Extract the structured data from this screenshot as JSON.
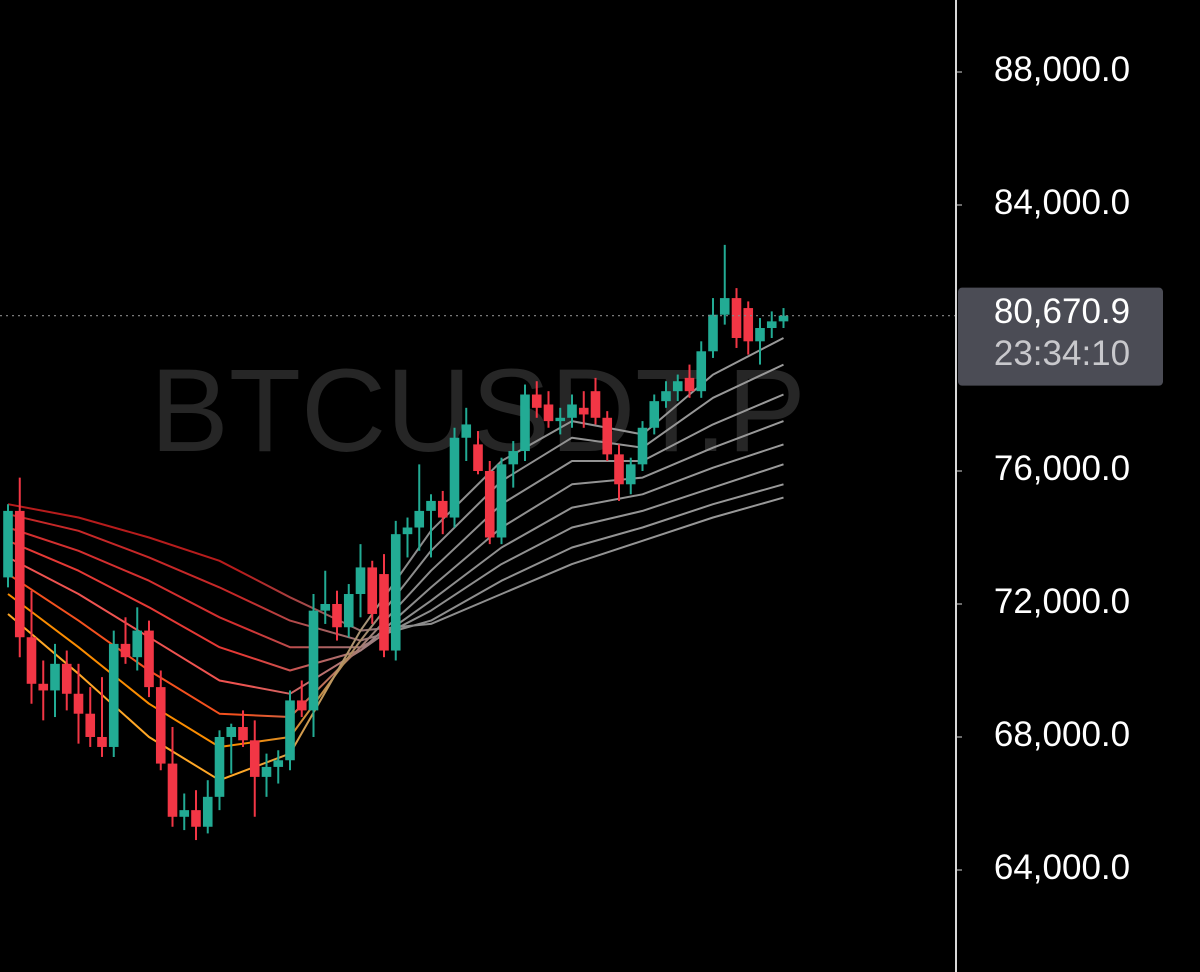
{
  "chart_data": {
    "type": "candlestick",
    "watermark": "BTCUSDT.P",
    "categories": [
      null,
      null,
      null,
      null,
      null,
      null,
      null,
      null,
      null,
      null,
      null,
      null,
      null,
      null,
      null,
      null,
      null,
      null,
      null,
      null,
      null,
      null,
      null,
      null,
      null,
      null,
      null,
      null,
      null,
      null,
      null,
      null,
      null,
      null,
      null,
      null,
      null,
      null,
      null,
      null,
      null,
      null,
      null,
      null,
      null,
      null,
      null,
      null,
      null,
      null,
      null,
      null,
      null,
      null,
      null,
      null,
      null,
      null,
      null,
      null,
      null,
      null,
      null,
      null,
      null,
      null,
      null
    ],
    "open": [
      72800,
      74800,
      71000,
      69600,
      69400,
      70200,
      69300,
      68700,
      68000,
      67700,
      70800,
      70400,
      71200,
      69500,
      67200,
      65600,
      65800,
      65300,
      66200,
      68000,
      68300,
      67900,
      66800,
      67100,
      67300,
      69100,
      68800,
      71800,
      72000,
      71300,
      72300,
      73100,
      72900,
      70600,
      74100,
      74300,
      74800,
      75100,
      74600,
      77000,
      76800,
      76000,
      74000,
      76200,
      76600,
      78300,
      78000,
      77500,
      77600,
      77900,
      78400,
      77600,
      76500,
      75600,
      76200,
      77300,
      78100,
      78400,
      78800,
      78400,
      79600,
      80700,
      81200,
      80900,
      79900,
      80300,
      80500
    ],
    "high": [
      75000,
      75800,
      72400,
      70300,
      70800,
      70600,
      70200,
      69500,
      69800,
      71200,
      71600,
      71900,
      71500,
      70000,
      68300,
      66300,
      66400,
      66700,
      68200,
      68400,
      68800,
      68500,
      67500,
      67600,
      69400,
      69700,
      72300,
      73000,
      72400,
      72600,
      73800,
      73300,
      73500,
      74500,
      74600,
      76200,
      75300,
      75400,
      77300,
      77900,
      77200,
      76300,
      76400,
      76900,
      78600,
      78700,
      78400,
      77900,
      78300,
      78400,
      78800,
      77800,
      76800,
      76400,
      77500,
      78300,
      78700,
      78900,
      79200,
      79900,
      81200,
      82800,
      81500,
      81100,
      80600,
      80800,
      80900
    ],
    "low": [
      72500,
      70400,
      69000,
      68500,
      68600,
      68800,
      67800,
      67700,
      67400,
      67400,
      70200,
      70000,
      69200,
      67000,
      65300,
      65200,
      64900,
      65100,
      65800,
      66900,
      67700,
      65600,
      66200,
      66600,
      67000,
      68600,
      68000,
      71400,
      70900,
      71000,
      71600,
      71400,
      70400,
      70300,
      73400,
      73600,
      73400,
      74100,
      74300,
      76300,
      75900,
      73800,
      73800,
      75500,
      76300,
      77600,
      77300,
      77100,
      77300,
      77300,
      77400,
      76300,
      75100,
      75300,
      76000,
      77100,
      77900,
      78100,
      78200,
      78200,
      79400,
      80400,
      79700,
      79500,
      79200,
      80000,
      80300
    ],
    "close": [
      74800,
      71000,
      69600,
      69400,
      70200,
      69300,
      68700,
      68000,
      67700,
      70800,
      70400,
      71200,
      69500,
      67200,
      65600,
      65800,
      65300,
      66200,
      68000,
      68300,
      67900,
      66800,
      67100,
      67300,
      69100,
      68800,
      71800,
      72000,
      71300,
      72300,
      73100,
      71700,
      70600,
      74100,
      74300,
      74800,
      75100,
      74600,
      77000,
      77400,
      76000,
      74000,
      76200,
      76600,
      78300,
      77900,
      77500,
      77600,
      78000,
      77700,
      77600,
      76500,
      75600,
      76200,
      77300,
      78100,
      78400,
      78700,
      78400,
      79600,
      80700,
      81200,
      80000,
      79900,
      80300,
      80500,
      80670.9
    ],
    "up_color": "#22ab94",
    "down_color": "#f23645",
    "ribbon": {
      "x": [
        0,
        6,
        12,
        18,
        24,
        30,
        36,
        42,
        48,
        54,
        60,
        66
      ],
      "series": [
        {
          "color": "#b71c1c",
          "values": [
            75000,
            74600,
            74000,
            73300,
            72200,
            71200,
            71400,
            72300,
            73200,
            73900,
            74600,
            75200
          ]
        },
        {
          "color": "#c62828",
          "values": [
            74700,
            74200,
            73400,
            72500,
            71500,
            70900,
            71500,
            72700,
            73700,
            74300,
            75000,
            75600
          ]
        },
        {
          "color": "#d32f2f",
          "values": [
            74300,
            73600,
            72700,
            71600,
            70700,
            70700,
            71800,
            73200,
            74300,
            74800,
            75500,
            76200
          ]
        },
        {
          "color": "#e53935",
          "values": [
            73900,
            73000,
            71900,
            70700,
            70000,
            70600,
            72100,
            73700,
            74900,
            75300,
            76100,
            76800
          ]
        },
        {
          "color": "#ef5350",
          "values": [
            73400,
            72300,
            71000,
            69700,
            69300,
            70600,
            72500,
            74300,
            75600,
            75800,
            76700,
            77500
          ]
        },
        {
          "color": "#f4511e",
          "values": [
            72900,
            71500,
            70000,
            68700,
            68600,
            70700,
            73000,
            75000,
            76300,
            76300,
            77400,
            78300
          ]
        },
        {
          "color": "#fb8c00",
          "values": [
            72300,
            70700,
            69000,
            67700,
            68000,
            70900,
            73600,
            75700,
            77000,
            76700,
            78200,
            79200
          ]
        },
        {
          "color": "#ffa726",
          "values": [
            71700,
            69900,
            68000,
            66700,
            67500,
            71200,
            74200,
            76300,
            77500,
            77100,
            78900,
            80000
          ]
        }
      ]
    },
    "ylim": [
      60932,
      90165
    ],
    "yticks": [
      {
        "value": 88000,
        "label": "88,000.0"
      },
      {
        "value": 84000,
        "label": "84,000.0"
      },
      {
        "value": 76000,
        "label": "76,000.0"
      },
      {
        "value": 72000,
        "label": "72,000.0"
      },
      {
        "value": 68000,
        "label": "68,000.0"
      },
      {
        "value": 64000,
        "label": "64,000.0"
      }
    ],
    "last_price": {
      "value": 80670.9,
      "label": "80,670.9"
    },
    "countdown": "23:34:10"
  }
}
